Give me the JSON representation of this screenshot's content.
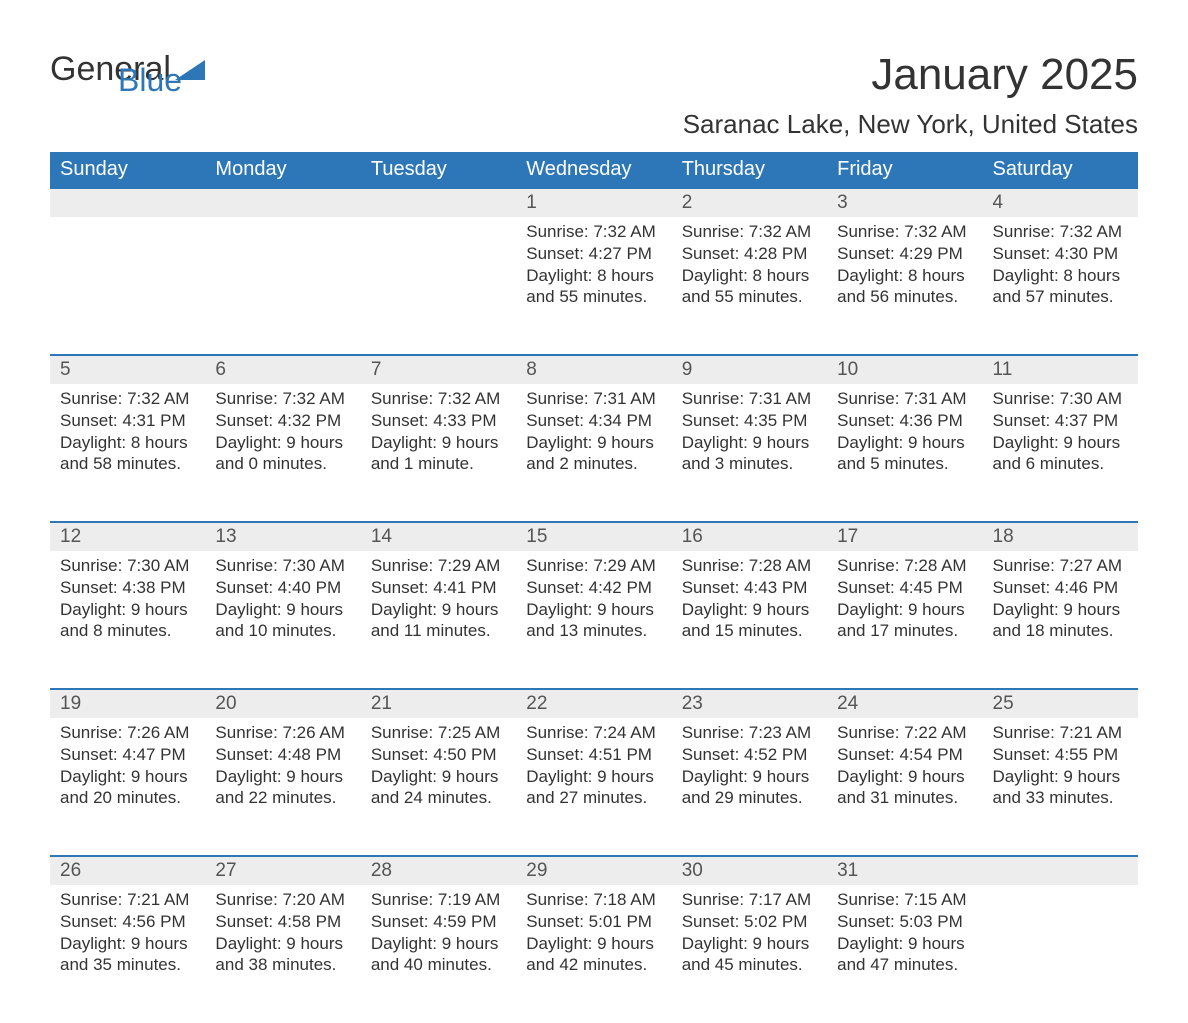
{
  "colors": {
    "header_bg": "#2d77b9",
    "header_text": "#ffffff",
    "daynum_bg": "#ededed",
    "daynum_text": "#555555",
    "row_border": "#2d77b9",
    "body_text": "#333333",
    "page_bg": "#ffffff",
    "logo_accent": "#2d77b9"
  },
  "fonts": {
    "title_size": 44,
    "subtitle_size": 26,
    "header_size": 20,
    "daynum_size": 19,
    "cell_size": 17
  },
  "logo": {
    "part1": "General",
    "part2": "Blue"
  },
  "title": "January 2025",
  "subtitle": "Saranac Lake, New York, United States",
  "weekdays": [
    "Sunday",
    "Monday",
    "Tuesday",
    "Wednesday",
    "Thursday",
    "Friday",
    "Saturday"
  ],
  "labels": {
    "sunrise": "Sunrise:",
    "sunset": "Sunset:",
    "daylight": "Daylight:"
  },
  "weeks": [
    [
      null,
      null,
      null,
      {
        "n": "1",
        "sr": "7:32 AM",
        "ss": "4:27 PM",
        "dl": "8 hours and 55 minutes."
      },
      {
        "n": "2",
        "sr": "7:32 AM",
        "ss": "4:28 PM",
        "dl": "8 hours and 55 minutes."
      },
      {
        "n": "3",
        "sr": "7:32 AM",
        "ss": "4:29 PM",
        "dl": "8 hours and 56 minutes."
      },
      {
        "n": "4",
        "sr": "7:32 AM",
        "ss": "4:30 PM",
        "dl": "8 hours and 57 minutes."
      }
    ],
    [
      {
        "n": "5",
        "sr": "7:32 AM",
        "ss": "4:31 PM",
        "dl": "8 hours and 58 minutes."
      },
      {
        "n": "6",
        "sr": "7:32 AM",
        "ss": "4:32 PM",
        "dl": "9 hours and 0 minutes."
      },
      {
        "n": "7",
        "sr": "7:32 AM",
        "ss": "4:33 PM",
        "dl": "9 hours and 1 minute."
      },
      {
        "n": "8",
        "sr": "7:31 AM",
        "ss": "4:34 PM",
        "dl": "9 hours and 2 minutes."
      },
      {
        "n": "9",
        "sr": "7:31 AM",
        "ss": "4:35 PM",
        "dl": "9 hours and 3 minutes."
      },
      {
        "n": "10",
        "sr": "7:31 AM",
        "ss": "4:36 PM",
        "dl": "9 hours and 5 minutes."
      },
      {
        "n": "11",
        "sr": "7:30 AM",
        "ss": "4:37 PM",
        "dl": "9 hours and 6 minutes."
      }
    ],
    [
      {
        "n": "12",
        "sr": "7:30 AM",
        "ss": "4:38 PM",
        "dl": "9 hours and 8 minutes."
      },
      {
        "n": "13",
        "sr": "7:30 AM",
        "ss": "4:40 PM",
        "dl": "9 hours and 10 minutes."
      },
      {
        "n": "14",
        "sr": "7:29 AM",
        "ss": "4:41 PM",
        "dl": "9 hours and 11 minutes."
      },
      {
        "n": "15",
        "sr": "7:29 AM",
        "ss": "4:42 PM",
        "dl": "9 hours and 13 minutes."
      },
      {
        "n": "16",
        "sr": "7:28 AM",
        "ss": "4:43 PM",
        "dl": "9 hours and 15 minutes."
      },
      {
        "n": "17",
        "sr": "7:28 AM",
        "ss": "4:45 PM",
        "dl": "9 hours and 17 minutes."
      },
      {
        "n": "18",
        "sr": "7:27 AM",
        "ss": "4:46 PM",
        "dl": "9 hours and 18 minutes."
      }
    ],
    [
      {
        "n": "19",
        "sr": "7:26 AM",
        "ss": "4:47 PM",
        "dl": "9 hours and 20 minutes."
      },
      {
        "n": "20",
        "sr": "7:26 AM",
        "ss": "4:48 PM",
        "dl": "9 hours and 22 minutes."
      },
      {
        "n": "21",
        "sr": "7:25 AM",
        "ss": "4:50 PM",
        "dl": "9 hours and 24 minutes."
      },
      {
        "n": "22",
        "sr": "7:24 AM",
        "ss": "4:51 PM",
        "dl": "9 hours and 27 minutes."
      },
      {
        "n": "23",
        "sr": "7:23 AM",
        "ss": "4:52 PM",
        "dl": "9 hours and 29 minutes."
      },
      {
        "n": "24",
        "sr": "7:22 AM",
        "ss": "4:54 PM",
        "dl": "9 hours and 31 minutes."
      },
      {
        "n": "25",
        "sr": "7:21 AM",
        "ss": "4:55 PM",
        "dl": "9 hours and 33 minutes."
      }
    ],
    [
      {
        "n": "26",
        "sr": "7:21 AM",
        "ss": "4:56 PM",
        "dl": "9 hours and 35 minutes."
      },
      {
        "n": "27",
        "sr": "7:20 AM",
        "ss": "4:58 PM",
        "dl": "9 hours and 38 minutes."
      },
      {
        "n": "28",
        "sr": "7:19 AM",
        "ss": "4:59 PM",
        "dl": "9 hours and 40 minutes."
      },
      {
        "n": "29",
        "sr": "7:18 AM",
        "ss": "5:01 PM",
        "dl": "9 hours and 42 minutes."
      },
      {
        "n": "30",
        "sr": "7:17 AM",
        "ss": "5:02 PM",
        "dl": "9 hours and 45 minutes."
      },
      {
        "n": "31",
        "sr": "7:15 AM",
        "ss": "5:03 PM",
        "dl": "9 hours and 47 minutes."
      },
      null
    ]
  ]
}
